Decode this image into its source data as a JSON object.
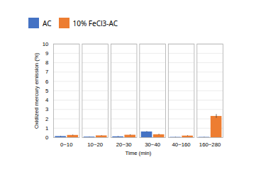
{
  "chart_data": {
    "type": "bar",
    "xlabel": "Time (min)",
    "ylabel": "Oxidized mercury emission (%)",
    "categories": [
      "0~10",
      "10~20",
      "20~30",
      "30~40",
      "40~160",
      "160~280"
    ],
    "series": [
      {
        "name": "AC",
        "color": "#4472c4",
        "values": [
          0.13,
          0.07,
          0.1,
          0.62,
          0.04,
          0.04
        ],
        "errors": [
          0.03,
          0.02,
          0.03,
          0.04,
          0.02,
          0.02
        ]
      },
      {
        "name": "10% FeCl3-AC",
        "color": "#ed7d31",
        "values": [
          0.25,
          0.2,
          0.27,
          0.32,
          0.18,
          2.28
        ],
        "errors": [
          0.04,
          0.03,
          0.05,
          0.05,
          0.04,
          0.2
        ]
      }
    ],
    "ylim": [
      0,
      10
    ],
    "yticks": [
      0,
      1,
      2,
      3,
      4,
      5,
      6,
      7,
      8,
      9,
      10
    ],
    "grid": true,
    "legend": "top"
  }
}
